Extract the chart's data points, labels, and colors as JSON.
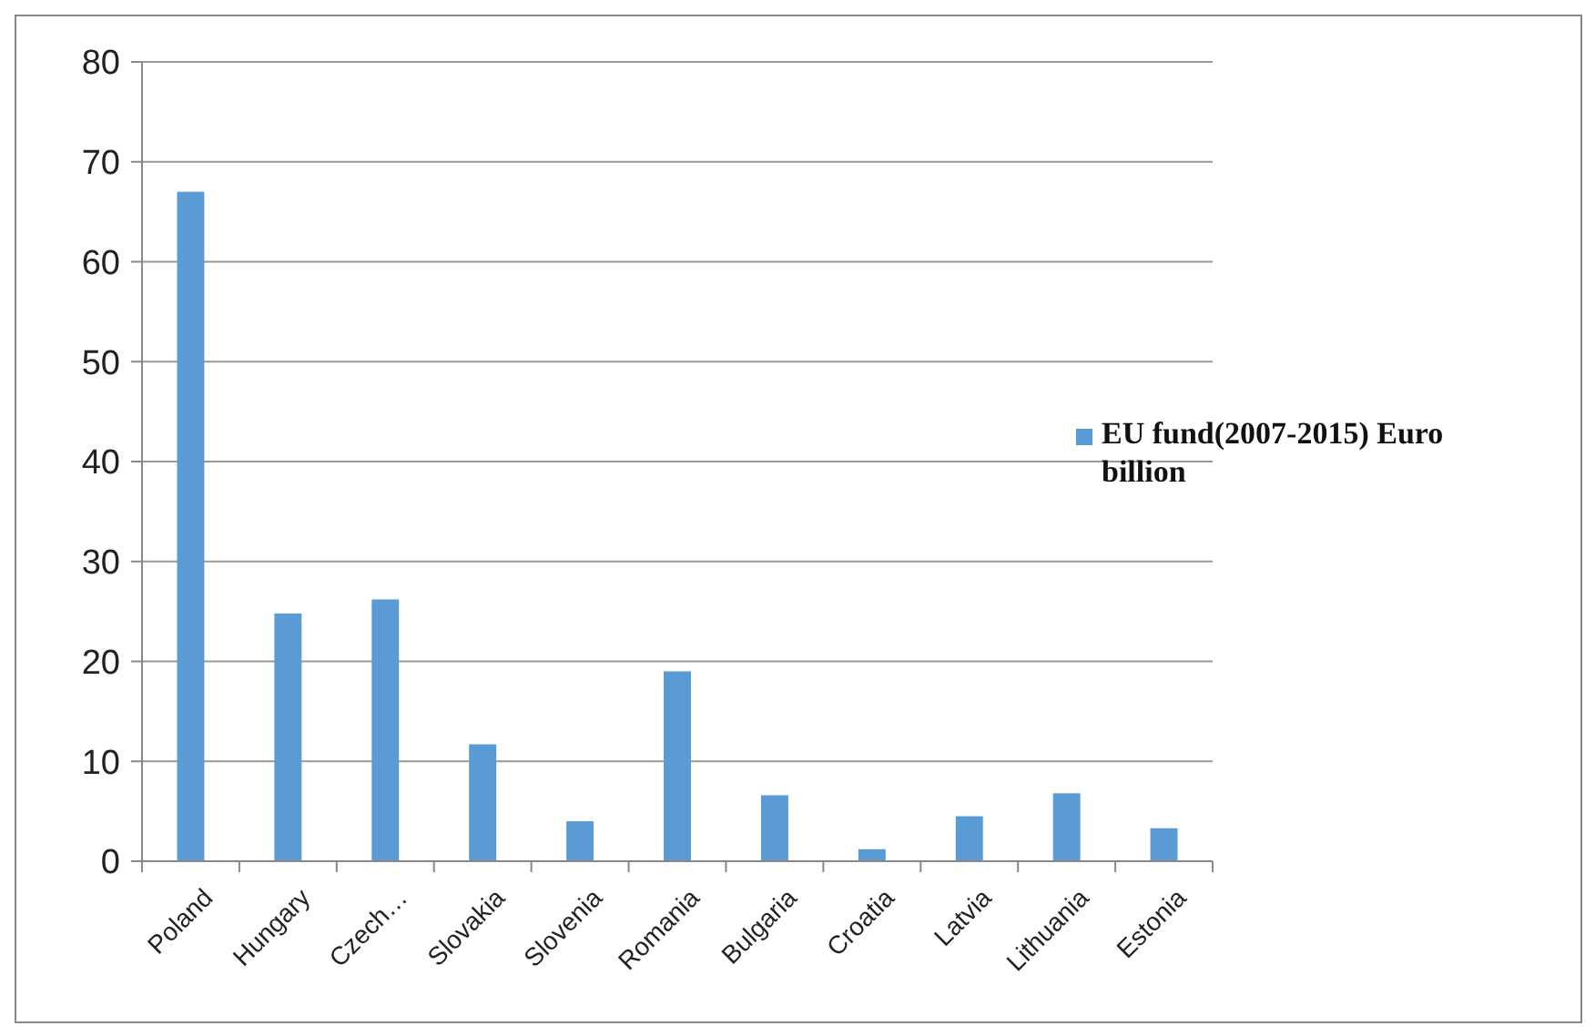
{
  "chart_data": {
    "type": "bar",
    "categories": [
      "Poland",
      "Hungary",
      "Czech…",
      "Slovakia",
      "Slovenia",
      "Romania",
      "Bulgaria",
      "Croatia",
      "Latvia",
      "Lithuania",
      "Estonia"
    ],
    "series": [
      {
        "name": "EU fund(2007-2015) Euro billion",
        "color": "#5b9bd5",
        "values": [
          67.0,
          24.8,
          26.2,
          11.7,
          4.0,
          19.0,
          6.6,
          1.2,
          4.5,
          6.8,
          3.3
        ]
      }
    ],
    "ylim": [
      0,
      80
    ],
    "yticks": [
      0,
      10,
      20,
      30,
      40,
      50,
      60,
      70,
      80
    ],
    "grid": "y",
    "legend": "right"
  }
}
